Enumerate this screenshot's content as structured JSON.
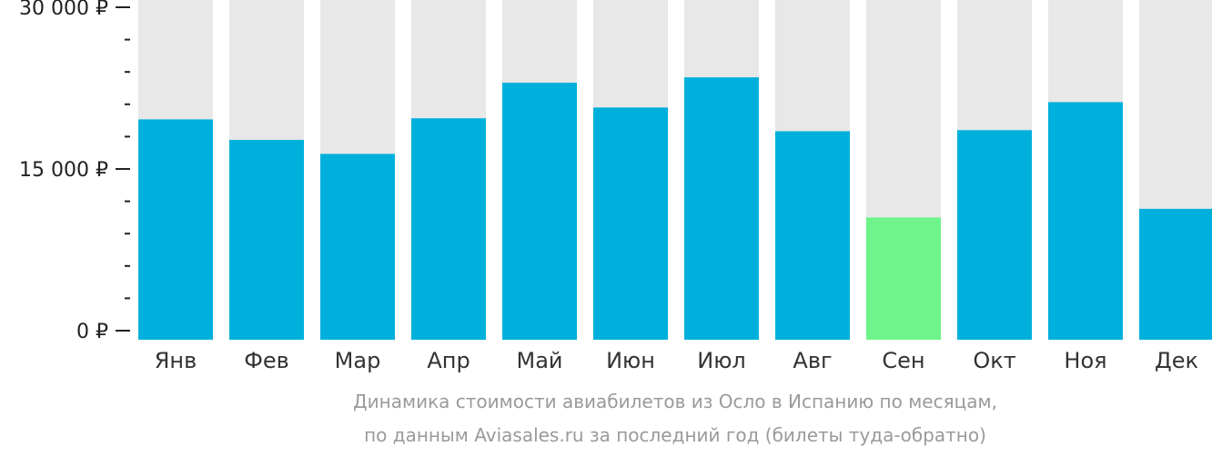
{
  "chart_data": {
    "type": "bar",
    "categories": [
      "Янв",
      "Фев",
      "Мар",
      "Апр",
      "Май",
      "Июн",
      "Июл",
      "Авг",
      "Сен",
      "Окт",
      "Ноя",
      "Дек"
    ],
    "values": [
      19600,
      17700,
      16400,
      19700,
      23000,
      20700,
      23500,
      18500,
      10500,
      18600,
      21200,
      11300
    ],
    "highlight_index": 8,
    "ylim": [
      0,
      30000
    ],
    "yticks": [
      {
        "value": 0,
        "label": "0 ₽"
      },
      {
        "value": 15000,
        "label": "15 000 ₽"
      },
      {
        "value": 30000,
        "label": "30 000 ₽"
      }
    ],
    "minor_tick_step": 3000,
    "colors": {
      "bar": "#00b0dc",
      "highlight": "#6ef48a",
      "background_bar": "#e8e8e8",
      "axis": "#222222"
    },
    "caption": [
      "Динамика стоимости авиабилетов из Осло в Испанию по месяцам,",
      "по данным Aviasales.ru за последний год (билеты туда-обратно)"
    ]
  }
}
